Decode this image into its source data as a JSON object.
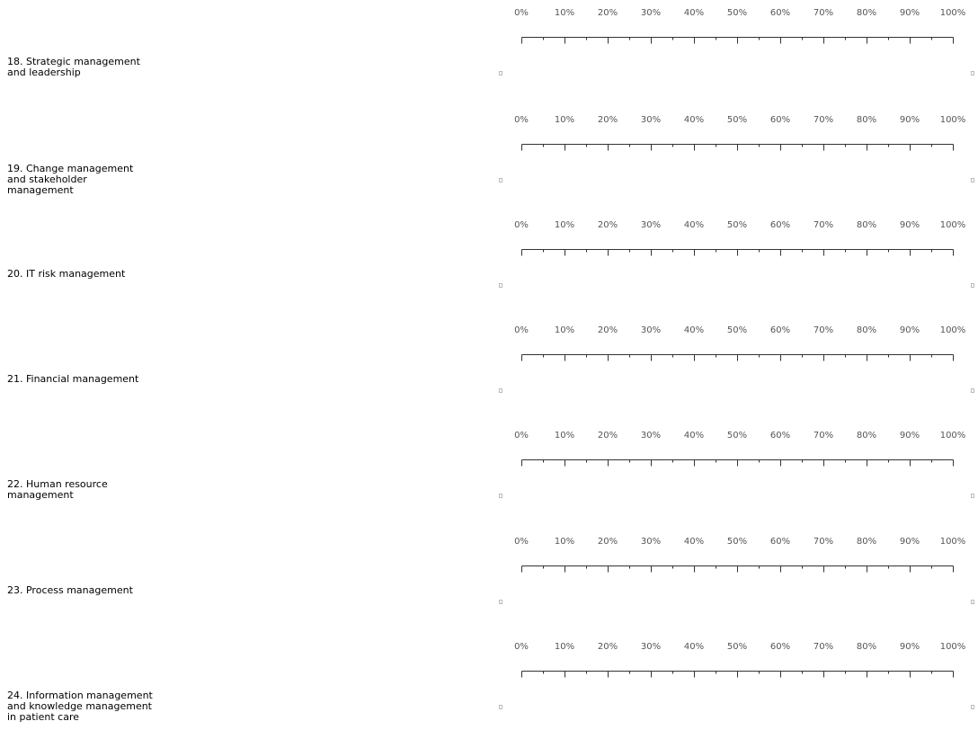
{
  "scale": {
    "labels": [
      "0%",
      "10%",
      "20%",
      "30%",
      "40%",
      "50%",
      "60%",
      "70%",
      "80%",
      "90%",
      "100%"
    ],
    "colors": {
      "label_text": "#555555",
      "ruler_line": "#333333",
      "handle": "#bbbbbb"
    }
  },
  "questions": [
    {
      "label": "18. Strategic management and leadership"
    },
    {
      "label": "19. Change management and stakeholder management"
    },
    {
      "label": "20. IT risk management"
    },
    {
      "label": "21. Financial management"
    },
    {
      "label": "22. Human resource management"
    },
    {
      "label": "23. Process management"
    },
    {
      "label": "24. Information management and knowledge management in patient care"
    }
  ]
}
